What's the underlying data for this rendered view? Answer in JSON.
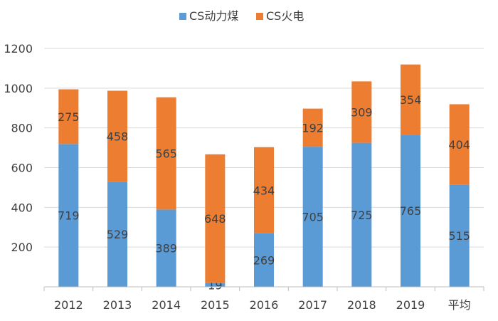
{
  "chart_data": {
    "type": "bar",
    "stacked": true,
    "categories": [
      "2012",
      "2013",
      "2014",
      "2015",
      "2016",
      "2017",
      "2018",
      "2019",
      "平均"
    ],
    "series": [
      {
        "name": "CS动力煤",
        "color": "#5B9BD5",
        "values": [
          719,
          529,
          389,
          19,
          269,
          705,
          725,
          765,
          515
        ]
      },
      {
        "name": "CS火电",
        "color": "#ED7D31",
        "values": [
          275,
          458,
          565,
          648,
          434,
          192,
          309,
          354,
          404
        ]
      }
    ],
    "ylim": [
      0,
      1200
    ],
    "yticks": [
      0,
      200,
      400,
      600,
      800,
      1000,
      1200
    ],
    "ytick_labels": [
      "",
      "200",
      "400",
      "600",
      "800",
      "1000",
      "1200"
    ],
    "grid": true,
    "legend_position": "top-center"
  }
}
